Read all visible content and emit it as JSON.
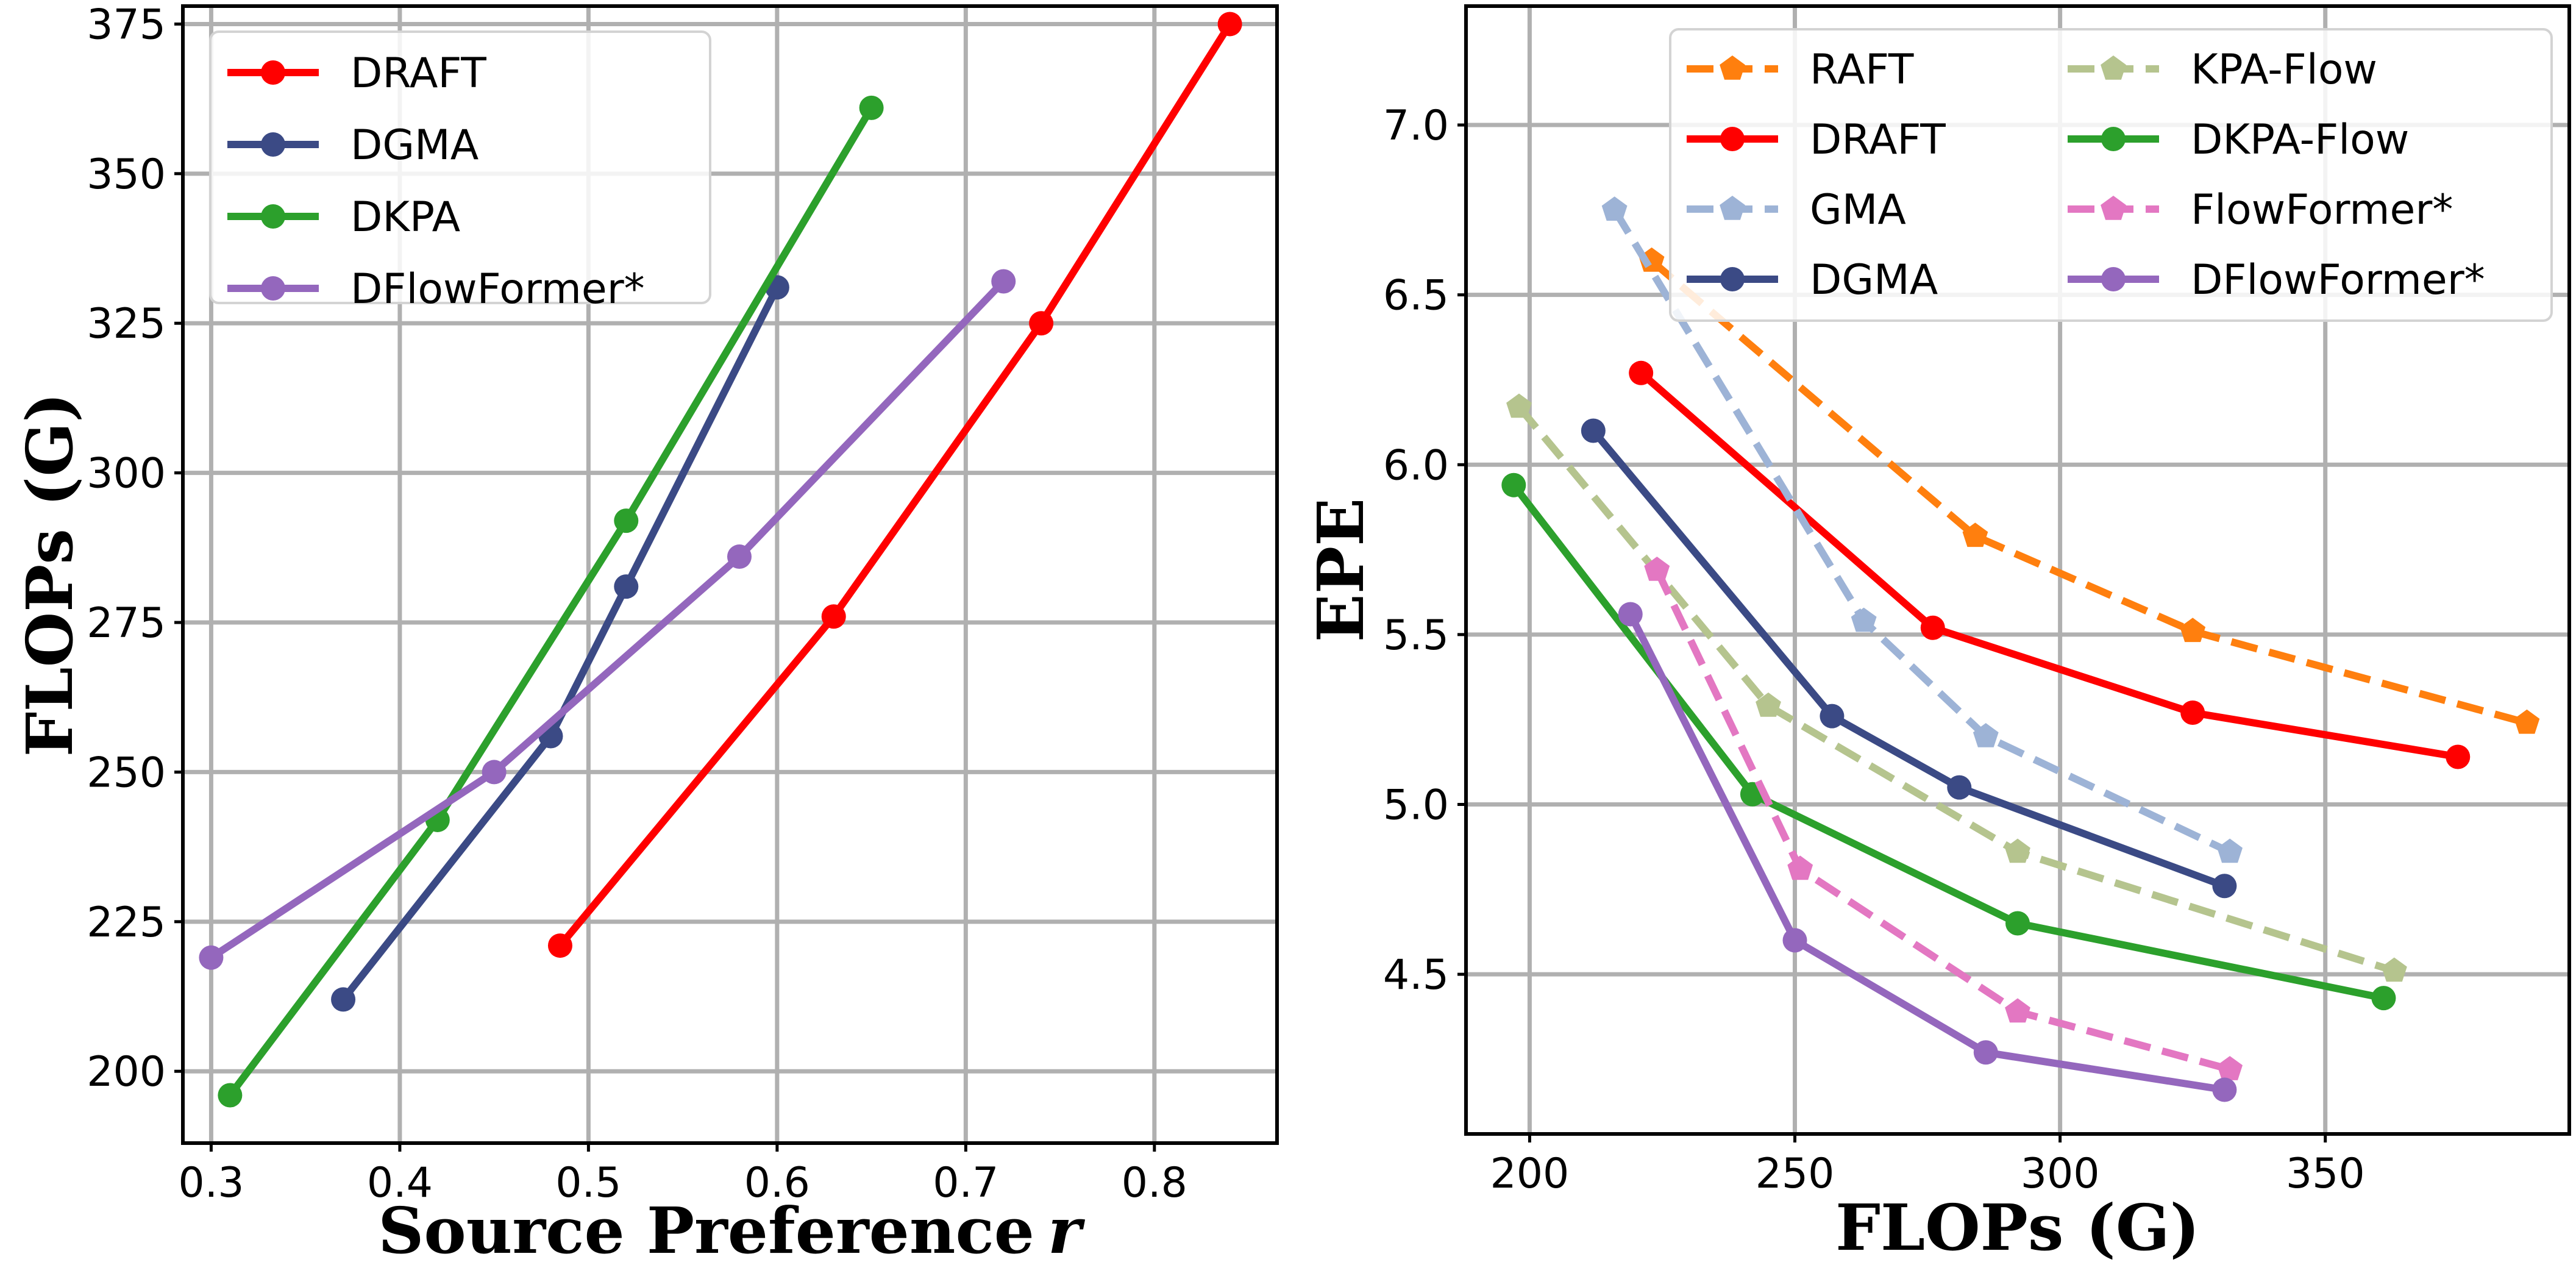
{
  "chart_data": [
    {
      "type": "line",
      "xlabel": "Source Preference",
      "xlabel_var": "r",
      "ylabel": "FLOPs (G)",
      "xlim": [
        0.285,
        0.865
      ],
      "ylim": [
        188,
        378
      ],
      "xticks": [
        0.3,
        0.4,
        0.5,
        0.6,
        0.7,
        0.8
      ],
      "yticks": [
        200,
        225,
        250,
        275,
        300,
        325,
        350,
        375
      ],
      "xtick_labels": [
        "0.3",
        "0.4",
        "0.5",
        "0.6",
        "0.7",
        "0.8"
      ],
      "ytick_labels": [
        "200",
        "225",
        "250",
        "275",
        "300",
        "325",
        "350",
        "375"
      ],
      "grid": true,
      "legend_position": "top-left",
      "series": [
        {
          "name": "DRAFT",
          "color": "#ff0000",
          "dash": false,
          "marker": "circle",
          "x": [
            0.485,
            0.63,
            0.74,
            0.84
          ],
          "y": [
            221,
            276,
            325,
            375
          ]
        },
        {
          "name": "DGMA",
          "color": "#3b4a85",
          "dash": false,
          "marker": "circle",
          "x": [
            0.37,
            0.48,
            0.52,
            0.6
          ],
          "y": [
            212,
            256,
            281,
            331
          ]
        },
        {
          "name": "DKPA",
          "color": "#2ca02c",
          "dash": false,
          "marker": "circle",
          "x": [
            0.31,
            0.42,
            0.52,
            0.65
          ],
          "y": [
            196,
            242,
            292,
            361
          ]
        },
        {
          "name": "DFlowFormer*",
          "color": "#9467bd",
          "dash": false,
          "marker": "circle",
          "x": [
            0.3,
            0.45,
            0.58,
            0.72
          ],
          "y": [
            219,
            250,
            286,
            332
          ]
        }
      ]
    },
    {
      "type": "line",
      "xlabel": "FLOPs (G)",
      "ylabel": "EPE",
      "xlim": [
        188,
        396
      ],
      "ylim": [
        4.03,
        7.35
      ],
      "xticks": [
        200,
        250,
        300,
        350
      ],
      "yticks": [
        4.5,
        5.0,
        5.5,
        6.0,
        6.5,
        7.0
      ],
      "xtick_labels": [
        "200",
        "250",
        "300",
        "350"
      ],
      "ytick_labels": [
        "4.5",
        "5.0",
        "5.5",
        "6.0",
        "6.5",
        "7.0"
      ],
      "grid": true,
      "legend_position": "top-right",
      "legend_columns": 2,
      "series": [
        {
          "name": "RAFT",
          "color": "#ff7f0e",
          "dash": true,
          "marker": "pentagon",
          "x": [
            223,
            284,
            325,
            388
          ],
          "y": [
            6.6,
            5.79,
            5.51,
            5.24
          ]
        },
        {
          "name": "DRAFT",
          "color": "#ff0000",
          "dash": false,
          "marker": "circle",
          "x": [
            221,
            276,
            325,
            375
          ],
          "y": [
            6.27,
            5.52,
            5.27,
            5.14
          ]
        },
        {
          "name": "GMA",
          "color": "#9db3d6",
          "dash": true,
          "marker": "pentagon",
          "x": [
            216,
            263,
            286,
            332
          ],
          "y": [
            6.75,
            5.54,
            5.2,
            4.86
          ]
        },
        {
          "name": "DGMA",
          "color": "#3b4a85",
          "dash": false,
          "marker": "circle",
          "x": [
            212,
            257,
            281,
            331
          ],
          "y": [
            6.1,
            5.26,
            5.05,
            4.76
          ]
        },
        {
          "name": "KPA-Flow",
          "color": "#b5c48e",
          "dash": true,
          "marker": "pentagon",
          "x": [
            198,
            245,
            292,
            363
          ],
          "y": [
            6.17,
            5.29,
            4.86,
            4.51
          ]
        },
        {
          "name": "DKPA-Flow",
          "color": "#2ca02c",
          "dash": false,
          "marker": "circle",
          "x": [
            197,
            242,
            292,
            361
          ],
          "y": [
            5.94,
            5.03,
            4.65,
            4.43
          ]
        },
        {
          "name": "FlowFormer*",
          "color": "#e377c2",
          "dash": true,
          "marker": "pentagon",
          "x": [
            224,
            251,
            292,
            332
          ],
          "y": [
            5.69,
            4.81,
            4.39,
            4.22
          ]
        },
        {
          "name": "DFlowFormer*",
          "color": "#9467bd",
          "dash": false,
          "marker": "circle",
          "x": [
            219,
            250,
            286,
            331
          ],
          "y": [
            5.56,
            4.6,
            4.27,
            4.16
          ]
        }
      ]
    }
  ]
}
